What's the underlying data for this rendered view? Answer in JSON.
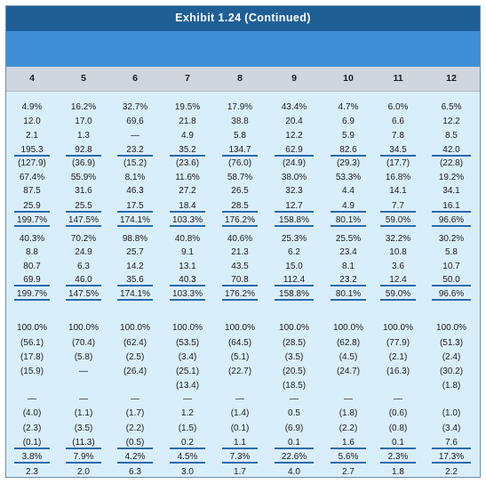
{
  "title": "Exhibit 1.24 (Continued)",
  "columns": [
    "4",
    "5",
    "6",
    "7",
    "8",
    "9",
    "10",
    "11",
    "12"
  ],
  "sections": [
    {
      "name": "section-1",
      "rows": [
        [
          "4.9%",
          "16.2%",
          "32.7%",
          "19.5%",
          "17.9%",
          "43.4%",
          "4.7%",
          "6.0%",
          "6.5%"
        ],
        [
          "12.0",
          "17.0",
          "69.6",
          "21.8",
          "38.8",
          "20.4",
          "6.9",
          "6.6",
          "12.2"
        ],
        [
          "2.1",
          "1.3",
          "—",
          "4.9",
          "5.8",
          "12.2",
          "5.9",
          "7.8",
          "8.5"
        ],
        [
          "195.3",
          "92.8",
          "23.2",
          "35.2",
          "134.7",
          "62.9",
          "82.6",
          "34.5",
          "42.0"
        ],
        [
          "(127.9)",
          "(36.9)",
          "(15.2)",
          "(23.6)",
          "(76.0)",
          "(24.9)",
          "(29.3)",
          "(17.7)",
          "(22.8)"
        ],
        [
          "67.4%",
          "55.9%",
          "8.1%",
          "11.6%",
          "58.7%",
          "38.0%",
          "53.3%",
          "16.8%",
          "19.2%"
        ],
        [
          "87.5",
          "31.6",
          "46.3",
          "27.2",
          "26.5",
          "32.3",
          "4.4",
          "14.1",
          "34.1"
        ],
        [
          "25.9",
          "25.5",
          "17.5",
          "18.4",
          "28.5",
          "12.7",
          "4.9",
          "7.7",
          "16.1"
        ],
        [
          "199.7%",
          "147.5%",
          "174.1%",
          "103.3%",
          "176.2%",
          "158.8%",
          "80.1%",
          "59.0%",
          "96.6%"
        ]
      ]
    },
    {
      "name": "section-2",
      "rows": [
        [
          "40.3%",
          "70.2%",
          "98.8%",
          "40.8%",
          "40.6%",
          "25.3%",
          "25.5%",
          "32.2%",
          "30.2%"
        ],
        [
          "8.8",
          "24.9",
          "25.7",
          "9.1",
          "21.3",
          "6.2",
          "23.4",
          "10.8",
          "5.8"
        ],
        [
          "80.7",
          "6.3",
          "14.2",
          "13.1",
          "43.5",
          "15.0",
          "8.1",
          "3.6",
          "10.7"
        ],
        [
          "69.9",
          "46.0",
          "35.6",
          "40.3",
          "70.8",
          "112.4",
          "23.2",
          "12.4",
          "50.0"
        ],
        [
          "199.7%",
          "147.5%",
          "174.1%",
          "103.3%",
          "176.2%",
          "158.8%",
          "80.1%",
          "59.0%",
          "96.6%"
        ]
      ]
    },
    {
      "name": "section-3",
      "rows": [
        [
          "100.0%",
          "100.0%",
          "100.0%",
          "100.0%",
          "100.0%",
          "100.0%",
          "100.0%",
          "100.0%",
          "100.0%"
        ],
        [
          "(56.1)",
          "(70.4)",
          "(62.4)",
          "(53.5)",
          "(64.5)",
          "(28.5)",
          "(62.8)",
          "(77.9)",
          "(51.3)"
        ],
        [
          "(17.8)",
          "(5.8)",
          "(2.5)",
          "(3.4)",
          "(5.1)",
          "(3.5)",
          "(4.5)",
          "(2.1)",
          "(2.4)"
        ],
        [
          "(15.9)",
          "—",
          "(26.4)",
          "(25.1)",
          "(22.7)",
          "(20.5)",
          "(24.7)",
          "(16.3)",
          "(30.2)"
        ],
        [
          "",
          "",
          "",
          "(13.4)",
          "",
          "(18.5)",
          "",
          "",
          "(1.8)"
        ],
        [
          "—",
          "—",
          "—",
          "—",
          "—",
          "—",
          "—",
          "—",
          ""
        ],
        [
          "(4.0)",
          "(1.1)",
          "(1.7)",
          "1.2",
          "(1.4)",
          "0.5",
          "(1.8)",
          "(0.6)",
          "(1.0)"
        ],
        [
          "(2.3)",
          "(3.5)",
          "(2.2)",
          "(1.5)",
          "(0.1)",
          "(6.9)",
          "(2.2)",
          "(0.8)",
          "(3.4)"
        ],
        [
          "(0.1)",
          "(11.3)",
          "(0.5)",
          "0.2",
          "1.1",
          "0.1",
          "1.6",
          "0.1",
          "7.6"
        ],
        [
          "3.8%",
          "7.9%",
          "4.2%",
          "4.5%",
          "7.3%",
          "22.6%",
          "5.6%",
          "2.3%",
          "17.3%"
        ],
        [
          "2.3",
          "2.0",
          "6.3",
          "3.0",
          "1.7",
          "4.0",
          "2.7",
          "1.8",
          "2.2"
        ]
      ]
    }
  ],
  "colors": {
    "title_bar": "#1f5f96",
    "band": "#3f8fd6",
    "header": "#cfd6dd",
    "body": "#d9eefb",
    "rule": "#2a6aab"
  }
}
